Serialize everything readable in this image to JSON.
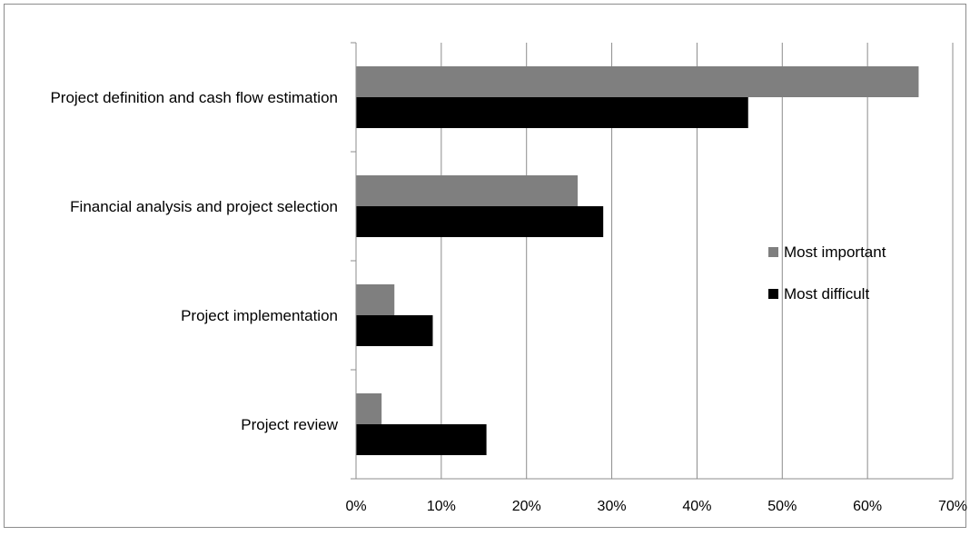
{
  "chart_data": {
    "type": "bar",
    "orientation": "horizontal",
    "categories": [
      "Project definition and cash flow estimation",
      "Financial analysis and project selection",
      "Project implementation",
      "Project review"
    ],
    "series": [
      {
        "name": "Most important",
        "color": "#7f7f7f",
        "values": [
          66,
          26,
          4.5,
          3
        ]
      },
      {
        "name": "Most difficult",
        "color": "#000000",
        "values": [
          46,
          29,
          9,
          15.3
        ]
      }
    ],
    "xlim": [
      0,
      70
    ],
    "xticks": [
      "0%",
      "10%",
      "20%",
      "30%",
      "40%",
      "50%",
      "60%",
      "70%"
    ],
    "grid": true,
    "legend_position": "right"
  }
}
